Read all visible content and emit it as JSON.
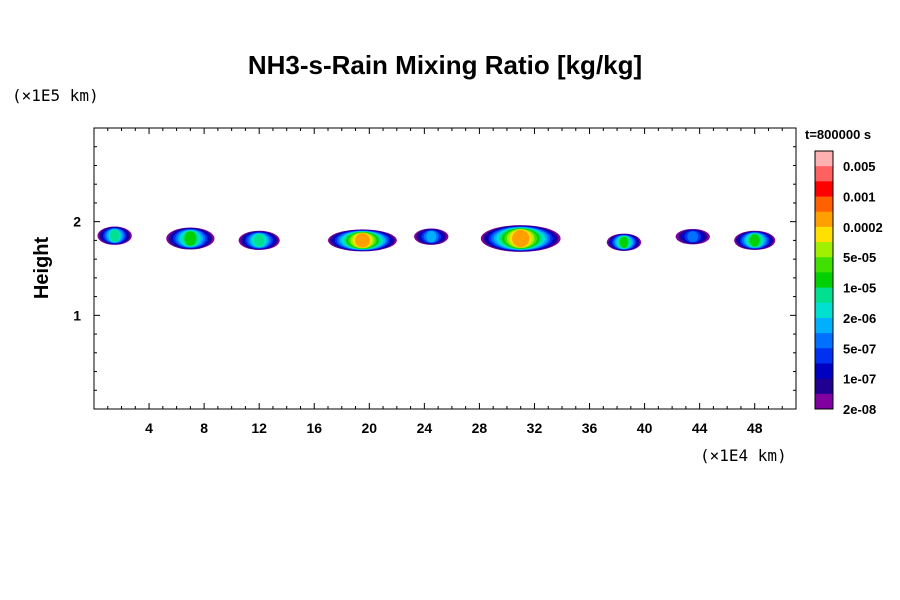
{
  "chart_data": {
    "type": "heatmap",
    "title": "NH3-s-Rain Mixing Ratio [kg/kg]",
    "xunit": "(×1E4 km)",
    "yunit": "(×1E5 km)",
    "ylabel": "Height",
    "time_label": "t=800000 s",
    "xlim": [
      0,
      51
    ],
    "ylim": [
      0,
      3
    ],
    "x_ticks": [
      "4",
      "8",
      "12",
      "16",
      "20",
      "24",
      "28",
      "32",
      "36",
      "40",
      "44",
      "48"
    ],
    "y_ticks": [
      "1",
      "2"
    ],
    "colorbar": {
      "labels": [
        "0.005",
        "0.001",
        "0.0002",
        "5e-05",
        "1e-05",
        "2e-06",
        "5e-07",
        "1e-07",
        "2e-08"
      ],
      "colors": [
        "#ffb0b0",
        "#ff6060",
        "#ff0000",
        "#ff6000",
        "#ffa000",
        "#ffe000",
        "#a0f000",
        "#40e000",
        "#00d000",
        "#00e090",
        "#00e0d0",
        "#00b0ff",
        "#0070ff",
        "#0030f0",
        "#0000c0",
        "#200090",
        "#8000a0"
      ]
    },
    "rain_layer": {
      "cells": [
        {
          "x": 1.5,
          "y": 1.85,
          "w": 2.5,
          "h": 0.11,
          "level": 8
        },
        {
          "x": 7.0,
          "y": 1.82,
          "w": 3.5,
          "h": 0.15,
          "level": 9
        },
        {
          "x": 12.0,
          "y": 1.8,
          "w": 3.0,
          "h": 0.12,
          "level": 8
        },
        {
          "x": 19.5,
          "y": 1.8,
          "w": 5.0,
          "h": 0.15,
          "level": 13
        },
        {
          "x": 24.5,
          "y": 1.84,
          "w": 2.5,
          "h": 0.09,
          "level": 6
        },
        {
          "x": 31.0,
          "y": 1.82,
          "w": 5.8,
          "h": 0.2,
          "level": 13
        },
        {
          "x": 38.5,
          "y": 1.78,
          "w": 2.5,
          "h": 0.1,
          "level": 9
        },
        {
          "x": 43.5,
          "y": 1.84,
          "w": 2.5,
          "h": 0.08,
          "level": 5
        },
        {
          "x": 48.0,
          "y": 1.8,
          "w": 3.0,
          "h": 0.12,
          "level": 9
        }
      ]
    }
  }
}
